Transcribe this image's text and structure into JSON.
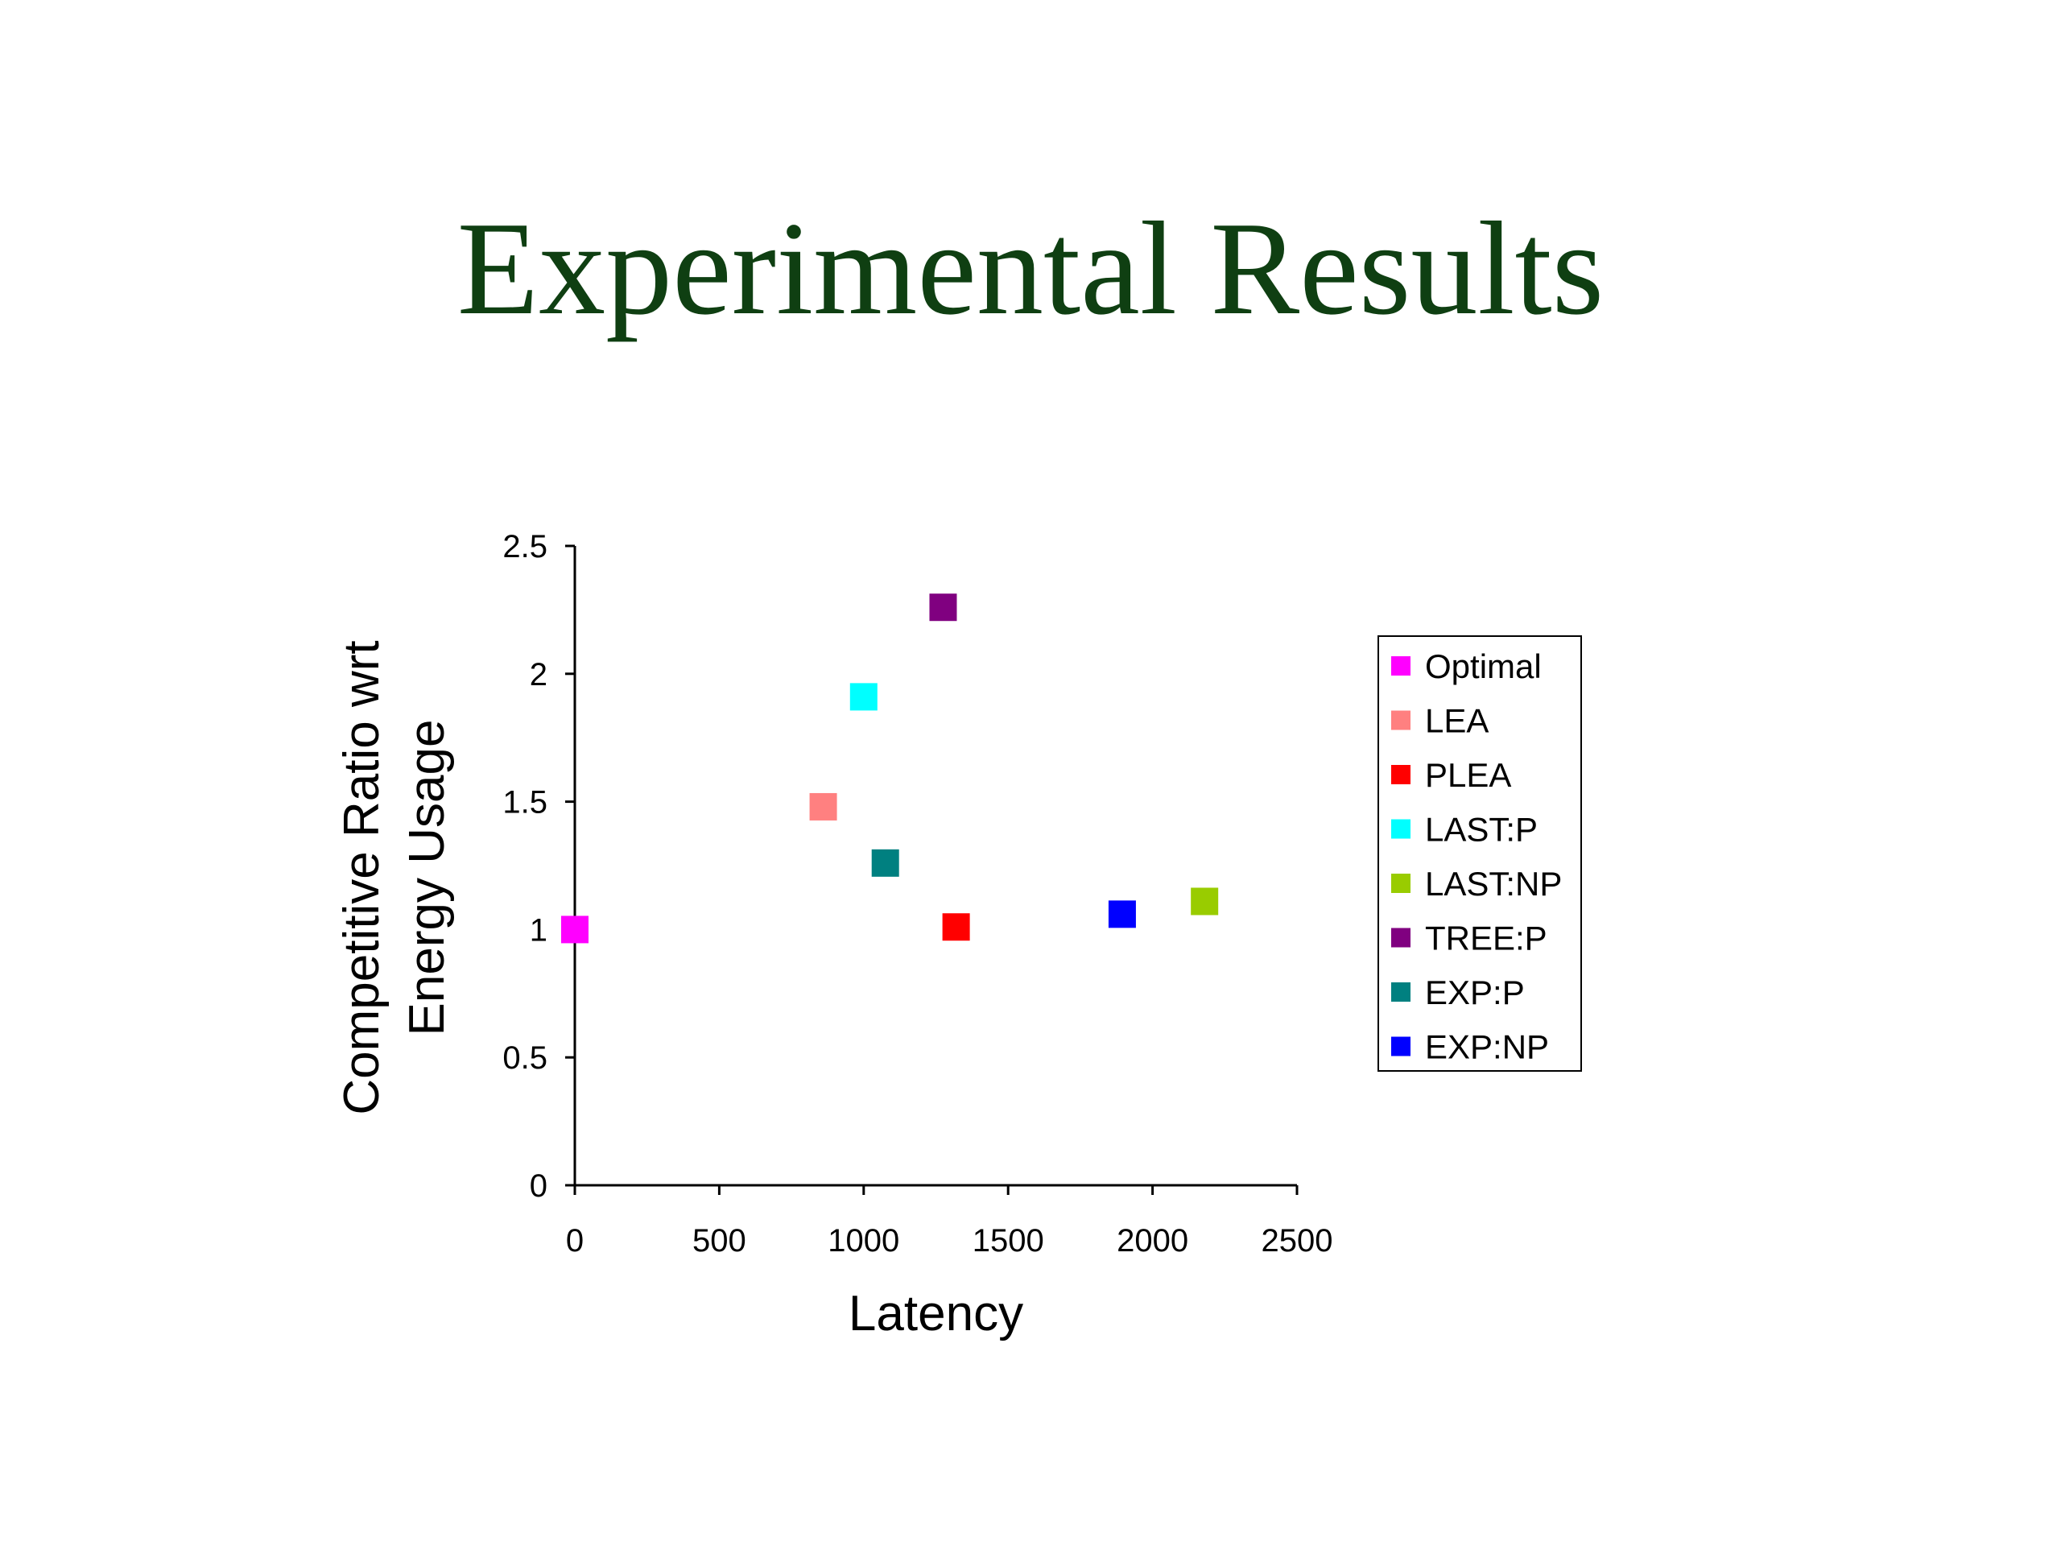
{
  "slide": {
    "title": "Experimental Results"
  },
  "chart_data": {
    "type": "scatter",
    "title": "",
    "xlabel": "Latency",
    "ylabel_lines": [
      "Competitive Ratio wrt",
      "Energy Usage"
    ],
    "xlim": [
      0,
      2500
    ],
    "ylim": [
      0,
      2.5
    ],
    "x_ticks": [
      0,
      500,
      1000,
      1500,
      2000,
      2500
    ],
    "y_ticks": [
      0,
      0.5,
      1,
      1.5,
      2,
      2.5
    ],
    "x_tick_labels": [
      "0",
      "500",
      "1000",
      "1500",
      "2000",
      "2500"
    ],
    "y_tick_labels": [
      "0",
      "0.5",
      "1",
      "1.5",
      "2",
      "2.5"
    ],
    "grid": false,
    "legend_position": "right",
    "marker": "square",
    "series": [
      {
        "name": "Optimal",
        "color": "#ff00ff",
        "x": 0,
        "y": 1.0
      },
      {
        "name": "LEA",
        "color": "#ff8080",
        "x": 860,
        "y": 1.48
      },
      {
        "name": "PLEA",
        "color": "#ff0000",
        "x": 1320,
        "y": 1.01
      },
      {
        "name": "LAST:P",
        "color": "#00ffff",
        "x": 1000,
        "y": 1.91
      },
      {
        "name": "LAST:NP",
        "color": "#99cc00",
        "x": 2180,
        "y": 1.11
      },
      {
        "name": "TREE:P",
        "color": "#800080",
        "x": 1275,
        "y": 2.26
      },
      {
        "name": "EXP:P",
        "color": "#008080",
        "x": 1075,
        "y": 1.26
      },
      {
        "name": "EXP:NP",
        "color": "#0000ff",
        "x": 1895,
        "y": 1.06
      }
    ]
  }
}
